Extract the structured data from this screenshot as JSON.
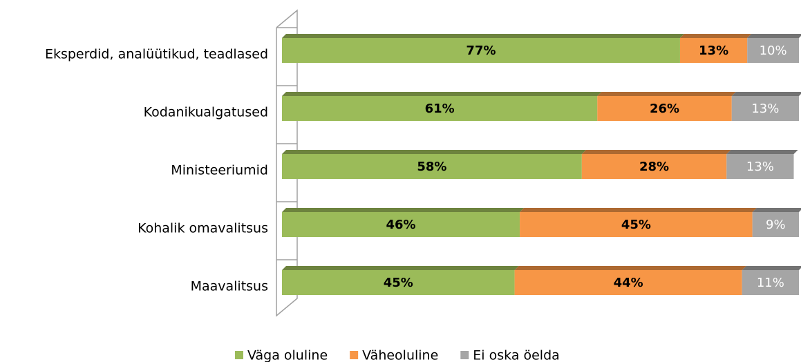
{
  "chart_data": {
    "type": "bar",
    "orientation": "horizontal",
    "stacked": true,
    "categories": [
      "Eksperdid, analüütikud, teadlased",
      "Kodanikualgatused",
      "Ministeeriumid",
      "Kohalik omavalitsus",
      "Maavalitsus"
    ],
    "series": [
      {
        "name": "Väga oluline",
        "color": "#9bbb59",
        "values": [
          77,
          61,
          58,
          46,
          45
        ],
        "value_labels": [
          "77%",
          "61%",
          "58%",
          "46%",
          "45%"
        ]
      },
      {
        "name": "Väheoluline",
        "color": "#f79646",
        "values": [
          13,
          26,
          28,
          45,
          44
        ],
        "value_labels": [
          "13%",
          "26%",
          "28%",
          "45%",
          "44%"
        ]
      },
      {
        "name": "Ei oska öelda",
        "color": "#a5a5a5",
        "values": [
          10,
          13,
          13,
          9,
          11
        ],
        "value_labels": [
          "10%",
          "13%",
          "13%",
          "9%",
          "11%"
        ]
      }
    ],
    "xlim": [
      0,
      100
    ],
    "legend": "bottom"
  }
}
